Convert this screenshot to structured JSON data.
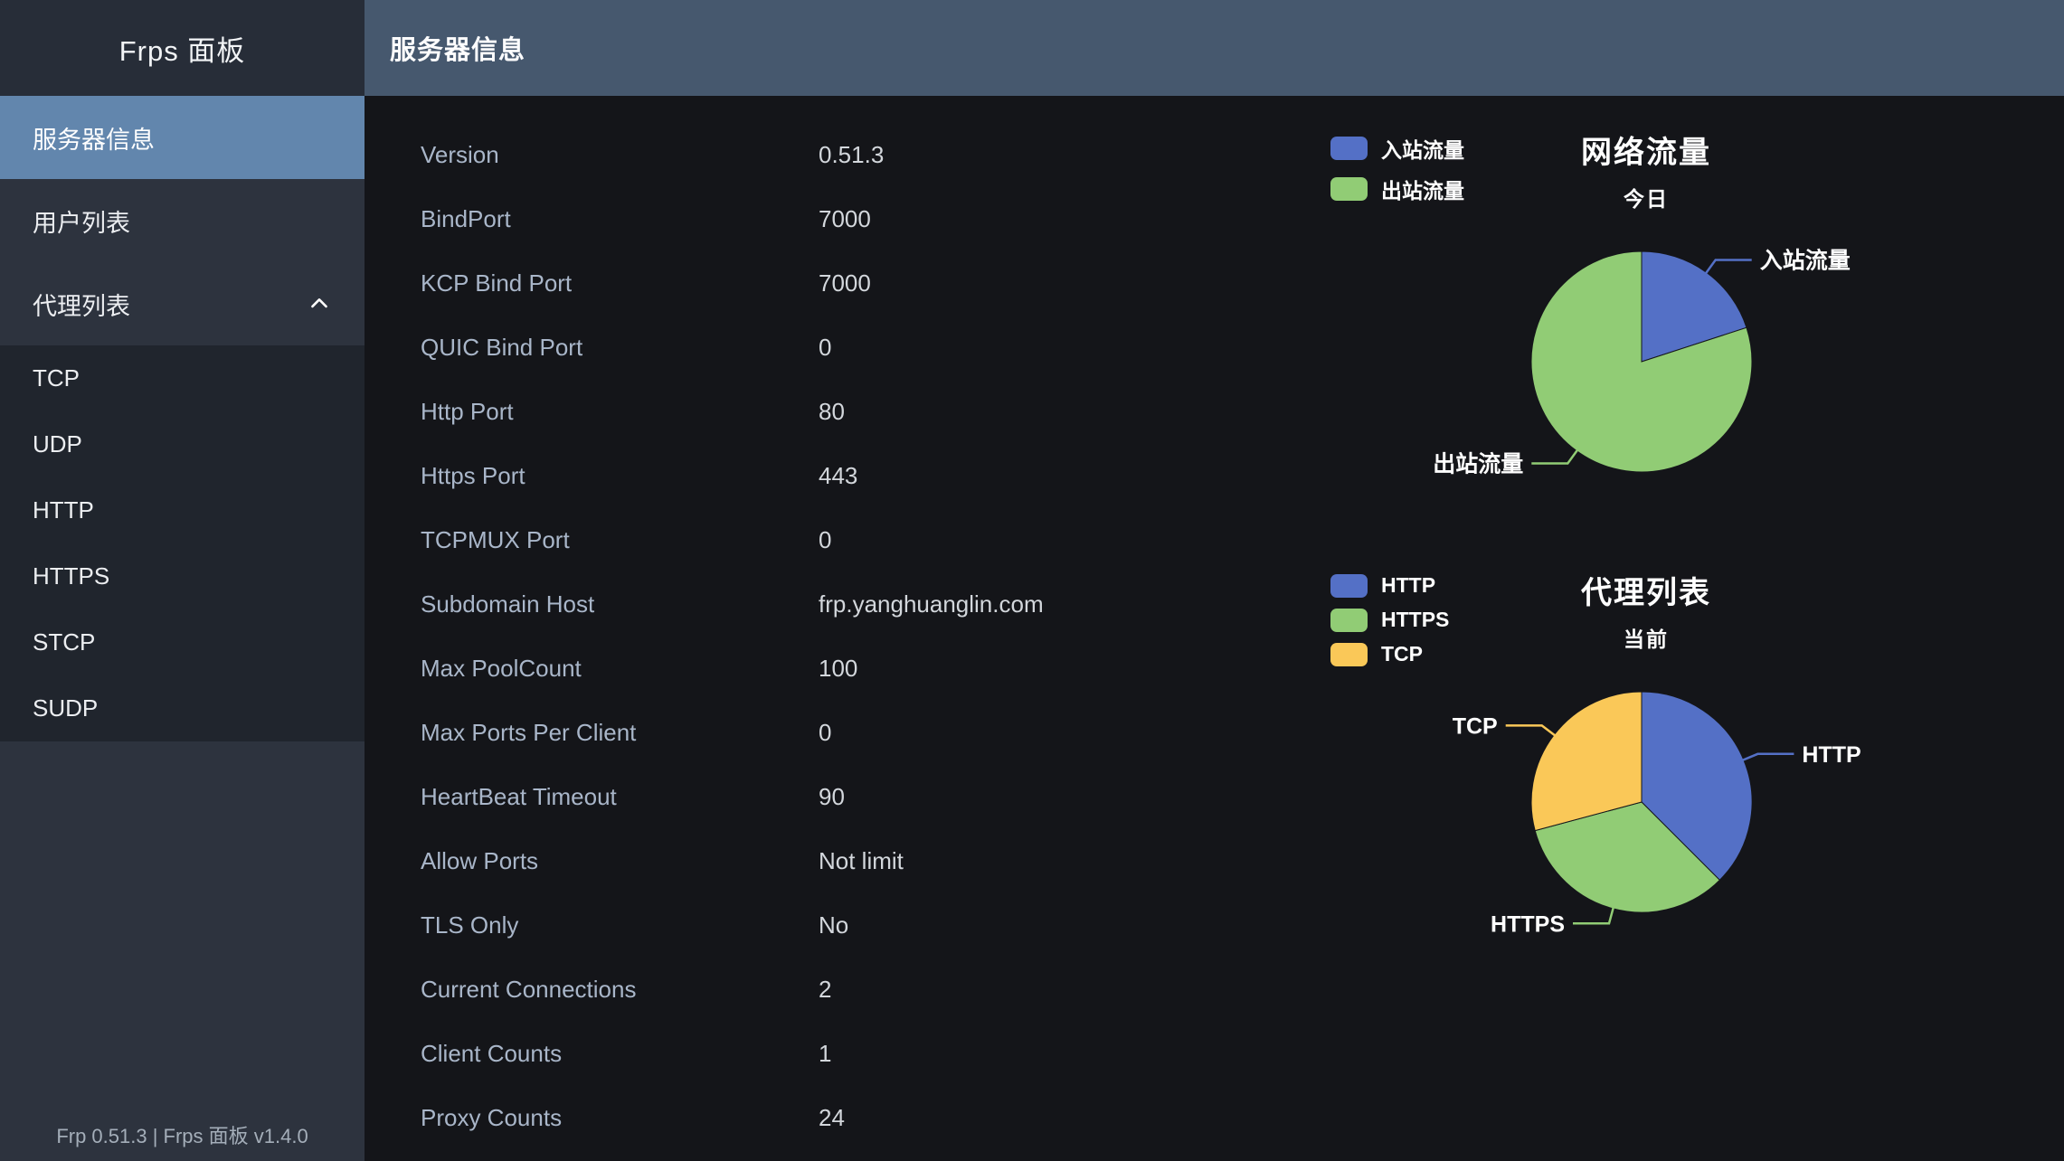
{
  "app": {
    "sidebar_title": "Frps 面板",
    "sidebar_footer": "Frp 0.51.3 | Frps 面板 v1.4.0"
  },
  "header": {
    "title": "服务器信息"
  },
  "sidebar": {
    "items": [
      {
        "label": "服务器信息",
        "selected": true
      },
      {
        "label": "用户列表",
        "selected": false
      },
      {
        "label": "代理列表",
        "selected": false,
        "expanded": true
      }
    ],
    "submenu": [
      {
        "label": "TCP"
      },
      {
        "label": "UDP"
      },
      {
        "label": "HTTP"
      },
      {
        "label": "HTTPS"
      },
      {
        "label": "STCP"
      },
      {
        "label": "SUDP"
      }
    ]
  },
  "server_info": {
    "rows": [
      {
        "label": "Version",
        "value": "0.51.3"
      },
      {
        "label": "BindPort",
        "value": "7000"
      },
      {
        "label": "KCP Bind Port",
        "value": "7000"
      },
      {
        "label": "QUIC Bind Port",
        "value": "0"
      },
      {
        "label": "Http Port",
        "value": "80"
      },
      {
        "label": "Https Port",
        "value": "443"
      },
      {
        "label": "TCPMUX Port",
        "value": "0"
      },
      {
        "label": "Subdomain Host",
        "value": "frp.yanghuanglin.com"
      },
      {
        "label": "Max PoolCount",
        "value": "100"
      },
      {
        "label": "Max Ports Per Client",
        "value": "0"
      },
      {
        "label": "HeartBeat Timeout",
        "value": "90"
      },
      {
        "label": "Allow Ports",
        "value": "Not limit"
      },
      {
        "label": "TLS Only",
        "value": "No"
      },
      {
        "label": "Current Connections",
        "value": "2"
      },
      {
        "label": "Client Counts",
        "value": "1"
      },
      {
        "label": "Proxy Counts",
        "value": "24"
      }
    ]
  },
  "chart_data": [
    {
      "type": "pie",
      "title": "网络流量",
      "subtitle": "今日",
      "legend_position": "top-left",
      "legend": [
        "入站流量",
        "出站流量"
      ],
      "palette": [
        "#5470c6",
        "#91cc75"
      ],
      "series": [
        {
          "name": "入站流量",
          "value": 20
        },
        {
          "name": "出站流量",
          "value": 80
        }
      ]
    },
    {
      "type": "pie",
      "title": "代理列表",
      "subtitle": "当前",
      "legend_position": "top-left",
      "legend": [
        "HTTP",
        "HTTPS",
        "TCP"
      ],
      "palette": [
        "#5470c6",
        "#91cc75",
        "#fac858"
      ],
      "series": [
        {
          "name": "HTTP",
          "value": 9
        },
        {
          "name": "HTTPS",
          "value": 8
        },
        {
          "name": "TCP",
          "value": 7
        }
      ]
    }
  ]
}
